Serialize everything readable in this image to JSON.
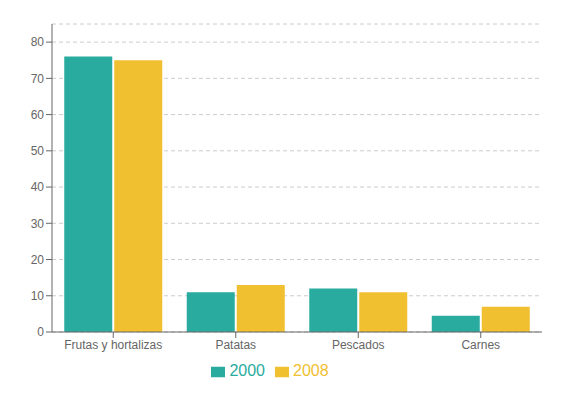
{
  "chart_data": {
    "type": "bar",
    "categories": [
      "Frutas y hortalizas",
      "Patatas",
      "Pescados",
      "Carnes"
    ],
    "series": [
      {
        "name": "2000",
        "color": "#2aab9f",
        "values": [
          76,
          11,
          12,
          4.5
        ]
      },
      {
        "name": "2008",
        "color": "#f0c030",
        "values": [
          75,
          13,
          11,
          7
        ]
      }
    ],
    "ylim": [
      0,
      85
    ],
    "yticks": [
      0,
      10,
      20,
      30,
      40,
      50,
      60,
      70,
      80
    ],
    "grid": true,
    "legend": "bottom"
  }
}
